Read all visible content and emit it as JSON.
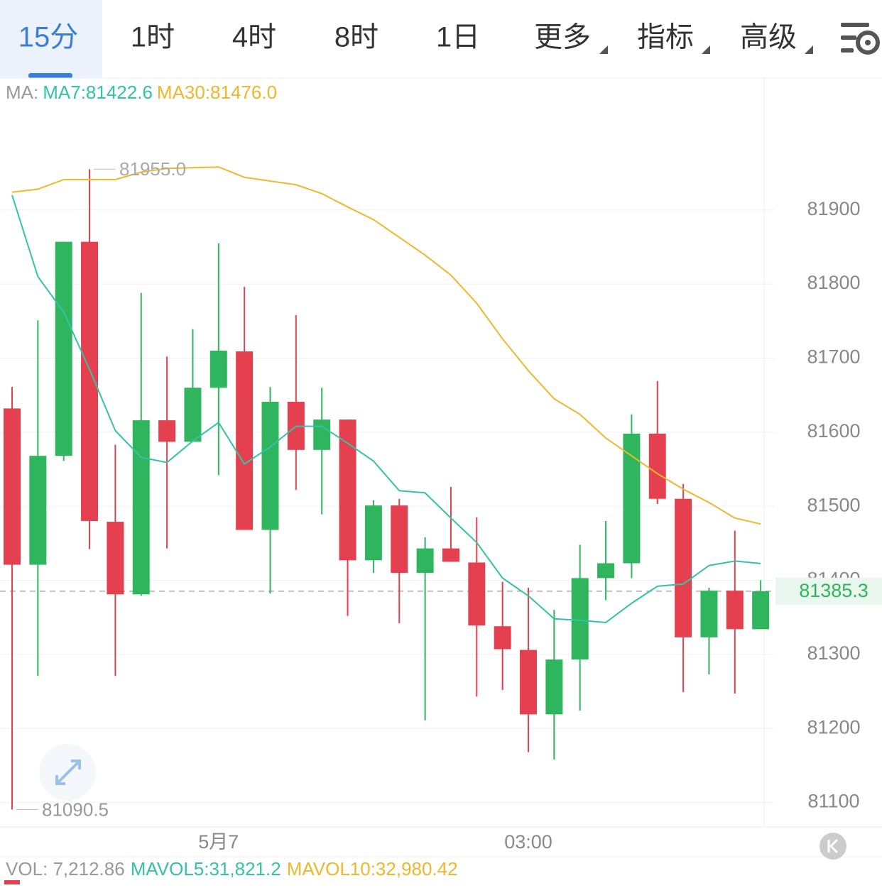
{
  "tabs": [
    "15分",
    "1时",
    "4时",
    "8时",
    "1日",
    "更多",
    "指标",
    "高级"
  ],
  "active_tab": "15分",
  "legend_prefix": "MA:",
  "volume_info": [
    "VOL: 7,212.86",
    "MAVOL5:31,821.2",
    "MAVOL10:32,980.42"
  ],
  "chart_data": {
    "type": "candlestick",
    "categories": [
      null,
      null,
      null,
      null,
      null,
      null,
      null,
      null,
      "5月7",
      null,
      null,
      null,
      null,
      null,
      null,
      null,
      null,
      null,
      null,
      null,
      "03:00",
      null,
      null,
      null,
      null,
      null,
      null,
      null,
      null,
      null
    ],
    "open": [
      81632,
      81421,
      81568,
      81857,
      81479,
      81381,
      81616,
      81587,
      81660,
      81709,
      81468,
      81641,
      81576,
      81617,
      81427,
      81501,
      81410,
      81443,
      81424,
      81338,
      81306,
      81219,
      81293,
      81403,
      81423,
      81598,
      81510,
      81323,
      81386,
      81334
    ],
    "high": [
      81661,
      81751,
      81857,
      81955,
      81583,
      81788,
      81702,
      81739,
      81855,
      81796,
      81661,
      81758,
      81660,
      81617,
      81508,
      81510,
      81458,
      81526,
      81485,
      81398,
      81390,
      81360,
      81448,
      81480,
      81624,
      81669,
      81530,
      81390,
      81467,
      81400
    ],
    "low": [
      81090.5,
      81271,
      81561,
      81442,
      81271,
      81379,
      81443,
      81587,
      81542,
      81468,
      81382,
      81522,
      81489,
      81352,
      81410,
      81342,
      81211,
      81425,
      81243,
      81252,
      81168,
      81158,
      81224,
      81373,
      81403,
      81503,
      81249,
      81273,
      81247,
      81334
    ],
    "close": [
      81421,
      81568,
      81857,
      81480,
      81381,
      81616,
      81587,
      81660,
      81710,
      81468,
      81641,
      81576,
      81617,
      81427,
      81501,
      81410,
      81443,
      81425,
      81339,
      81307,
      81219,
      81293,
      81403,
      81423,
      81598,
      81510,
      81323,
      81386,
      81334,
      81385.3
    ],
    "up_color": "#2eb55e",
    "down_color": "#e5404f",
    "series": [
      {
        "name": "MA7:81422.6",
        "color": "#33c3a6",
        "values": [
          81920,
          81810,
          81762,
          81685,
          81602,
          81566,
          81559,
          81588,
          81613,
          81557,
          81580,
          81608,
          81608,
          81585,
          81561,
          81521,
          81518,
          81484,
          81451,
          81403,
          81379,
          81348,
          81346,
          81343,
          81369,
          81392,
          81395,
          81420,
          81426,
          81422.6
        ]
      },
      {
        "name": "MA30:81476.0",
        "color": "#efb72a",
        "values": [
          81924,
          81928,
          81941,
          81941,
          81941,
          81951,
          81956,
          81957,
          81958,
          81944,
          81939,
          81934,
          81922,
          81904,
          81887,
          81863,
          81839,
          81812,
          81774,
          81726,
          81683,
          81645,
          81624,
          81592,
          81568,
          81544,
          81523,
          81505,
          81484,
          81476
        ]
      }
    ],
    "max_label": "81955.0",
    "min_label": "81090.5",
    "last_price": 81385.3,
    "ylim": [
      81067,
      82078
    ],
    "yticks": [
      81100,
      81200,
      81300,
      81400,
      81500,
      81600,
      81700,
      81800,
      81900
    ],
    "grid": true
  }
}
